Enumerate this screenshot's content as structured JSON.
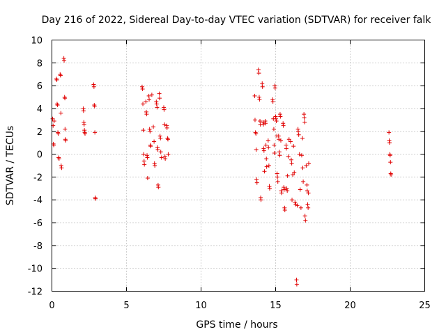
{
  "chart_data": {
    "type": "scatter",
    "title": "Day 216 of 2022, Sidereal Day-to-day VTEC variation (SDTVAR) for receiver falk",
    "xlabel": "GPS time / hours",
    "ylabel": "SDTVAR / TECUs",
    "xlim": [
      0,
      25
    ],
    "ylim": [
      -12,
      10
    ],
    "xticks": [
      0,
      5,
      10,
      15,
      20,
      25
    ],
    "xtick_labels": [
      "0",
      "5",
      "10",
      "15",
      "20",
      "25"
    ],
    "yticks": [
      -12,
      -10,
      -8,
      -6,
      -4,
      -2,
      0,
      2,
      4,
      6,
      8,
      10
    ],
    "ytick_labels": [
      "-12",
      "-10",
      "-8",
      "-6",
      "-4",
      "-2",
      "0",
      "2",
      "4",
      "6",
      "8",
      "10"
    ],
    "grid": true,
    "marker": "+",
    "series": [
      {
        "name": "SDTVAR",
        "color": "#e00000",
        "points": [
          [
            0.05,
            3.1
          ],
          [
            0.08,
            2.5
          ],
          [
            0.1,
            0.9
          ],
          [
            0.12,
            0.8
          ],
          [
            0.15,
            2.9
          ],
          [
            0.3,
            6.6
          ],
          [
            0.33,
            6.5
          ],
          [
            0.35,
            4.4
          ],
          [
            0.38,
            4.3
          ],
          [
            0.4,
            1.9
          ],
          [
            0.42,
            1.8
          ],
          [
            0.45,
            -0.3
          ],
          [
            0.48,
            -0.4
          ],
          [
            0.55,
            7.0
          ],
          [
            0.58,
            6.9
          ],
          [
            0.6,
            3.6
          ],
          [
            0.62,
            -1.0
          ],
          [
            0.65,
            -1.2
          ],
          [
            0.8,
            8.4
          ],
          [
            0.82,
            8.2
          ],
          [
            0.85,
            5.0
          ],
          [
            0.87,
            4.9
          ],
          [
            0.88,
            2.2
          ],
          [
            0.9,
            1.3
          ],
          [
            0.92,
            1.2
          ],
          [
            2.1,
            4.0
          ],
          [
            2.12,
            3.8
          ],
          [
            2.14,
            2.8
          ],
          [
            2.16,
            2.6
          ],
          [
            2.18,
            2.1
          ],
          [
            2.2,
            1.9
          ],
          [
            2.22,
            1.8
          ],
          [
            2.8,
            6.1
          ],
          [
            2.82,
            5.9
          ],
          [
            2.84,
            4.3
          ],
          [
            2.86,
            4.2
          ],
          [
            2.88,
            1.9
          ],
          [
            2.9,
            -3.8
          ],
          [
            2.92,
            -3.9
          ],
          [
            6.05,
            5.9
          ],
          [
            6.08,
            5.7
          ],
          [
            6.1,
            4.4
          ],
          [
            6.12,
            2.1
          ],
          [
            6.15,
            0.0
          ],
          [
            6.18,
            -0.6
          ],
          [
            6.2,
            -0.9
          ],
          [
            6.3,
            4.6
          ],
          [
            6.33,
            3.7
          ],
          [
            6.35,
            3.5
          ],
          [
            6.38,
            -0.1
          ],
          [
            6.4,
            -0.3
          ],
          [
            6.42,
            -2.1
          ],
          [
            6.5,
            5.1
          ],
          [
            6.52,
            4.8
          ],
          [
            6.55,
            2.2
          ],
          [
            6.58,
            2.0
          ],
          [
            6.6,
            0.8
          ],
          [
            6.62,
            0.7
          ],
          [
            6.7,
            5.2
          ],
          [
            6.8,
            2.4
          ],
          [
            6.85,
            1.1
          ],
          [
            6.88,
            -0.8
          ],
          [
            6.9,
            -1.0
          ],
          [
            7.0,
            4.6
          ],
          [
            7.02,
            4.4
          ],
          [
            7.05,
            4.1
          ],
          [
            7.08,
            0.6
          ],
          [
            7.1,
            0.4
          ],
          [
            7.12,
            -2.7
          ],
          [
            7.14,
            -2.9
          ],
          [
            7.2,
            5.3
          ],
          [
            7.22,
            4.9
          ],
          [
            7.25,
            1.6
          ],
          [
            7.28,
            1.4
          ],
          [
            7.3,
            0.2
          ],
          [
            7.35,
            -0.3
          ],
          [
            7.5,
            4.1
          ],
          [
            7.52,
            3.9
          ],
          [
            7.55,
            2.6
          ],
          [
            7.58,
            -0.2
          ],
          [
            7.6,
            -0.4
          ],
          [
            7.7,
            2.5
          ],
          [
            7.72,
            2.3
          ],
          [
            7.75,
            1.4
          ],
          [
            7.78,
            1.3
          ],
          [
            7.8,
            0.0
          ],
          [
            13.6,
            5.1
          ],
          [
            13.62,
            3.0
          ],
          [
            13.65,
            1.9
          ],
          [
            13.68,
            1.8
          ],
          [
            13.7,
            0.4
          ],
          [
            13.72,
            -2.2
          ],
          [
            13.75,
            -2.5
          ],
          [
            13.85,
            7.4
          ],
          [
            13.88,
            7.1
          ],
          [
            13.9,
            5.0
          ],
          [
            13.92,
            4.8
          ],
          [
            13.95,
            2.9
          ],
          [
            13.98,
            2.6
          ],
          [
            14.0,
            -3.8
          ],
          [
            14.02,
            -4.0
          ],
          [
            14.1,
            6.2
          ],
          [
            14.12,
            5.9
          ],
          [
            14.15,
            2.8
          ],
          [
            14.18,
            2.6
          ],
          [
            14.2,
            0.5
          ],
          [
            14.22,
            0.3
          ],
          [
            14.25,
            -1.5
          ],
          [
            14.3,
            2.9
          ],
          [
            14.32,
            2.7
          ],
          [
            14.35,
            0.8
          ],
          [
            14.38,
            -0.4
          ],
          [
            14.4,
            -1.1
          ],
          [
            14.5,
            1.2
          ],
          [
            14.52,
            0.6
          ],
          [
            14.55,
            -1.0
          ],
          [
            14.58,
            -2.8
          ],
          [
            14.6,
            -3.0
          ],
          [
            14.8,
            4.8
          ],
          [
            14.82,
            4.6
          ],
          [
            14.85,
            3.1
          ],
          [
            14.88,
            2.2
          ],
          [
            14.9,
            0.8
          ],
          [
            14.92,
            0.1
          ],
          [
            14.95,
            6.0
          ],
          [
            14.97,
            5.8
          ],
          [
            15.0,
            3.3
          ],
          [
            15.02,
            3.1
          ],
          [
            15.05,
            2.9
          ],
          [
            15.08,
            1.6
          ],
          [
            15.1,
            -1.7
          ],
          [
            15.12,
            -2.0
          ],
          [
            15.15,
            -2.4
          ],
          [
            15.2,
            1.6
          ],
          [
            15.22,
            1.3
          ],
          [
            15.25,
            0.2
          ],
          [
            15.28,
            -0.1
          ],
          [
            15.3,
            3.5
          ],
          [
            15.32,
            3.3
          ],
          [
            15.35,
            1.2
          ],
          [
            15.38,
            -3.2
          ],
          [
            15.4,
            -3.4
          ],
          [
            15.5,
            2.7
          ],
          [
            15.52,
            2.5
          ],
          [
            15.55,
            -2.9
          ],
          [
            15.58,
            -3.1
          ],
          [
            15.6,
            -4.7
          ],
          [
            15.62,
            -4.9
          ],
          [
            15.7,
            0.8
          ],
          [
            15.72,
            0.5
          ],
          [
            15.75,
            -3.0
          ],
          [
            15.78,
            -3.2
          ],
          [
            15.8,
            -1.9
          ],
          [
            15.85,
            -0.2
          ],
          [
            15.9,
            1.3
          ],
          [
            16.0,
            1.1
          ],
          [
            16.05,
            -0.5
          ],
          [
            16.08,
            -0.8
          ],
          [
            16.1,
            -4.0
          ],
          [
            16.15,
            -1.8
          ],
          [
            16.2,
            0.7
          ],
          [
            16.25,
            -1.6
          ],
          [
            16.3,
            -4.2
          ],
          [
            16.35,
            -4.4
          ],
          [
            16.4,
            -11.0
          ],
          [
            16.42,
            -11.4
          ],
          [
            16.45,
            -4.5
          ],
          [
            16.5,
            2.2
          ],
          [
            16.52,
            2.0
          ],
          [
            16.55,
            1.7
          ],
          [
            16.6,
            0.0
          ],
          [
            16.65,
            -3.1
          ],
          [
            16.7,
            -4.7
          ],
          [
            16.75,
            -0.1
          ],
          [
            16.8,
            1.4
          ],
          [
            16.82,
            -1.2
          ],
          [
            16.85,
            -2.4
          ],
          [
            16.9,
            3.5
          ],
          [
            16.92,
            3.2
          ],
          [
            16.95,
            2.8
          ],
          [
            16.97,
            -5.4
          ],
          [
            17.0,
            -5.8
          ],
          [
            17.05,
            -1.0
          ],
          [
            17.1,
            -2.7
          ],
          [
            17.12,
            -3.2
          ],
          [
            17.15,
            -4.4
          ],
          [
            17.18,
            -4.7
          ],
          [
            17.2,
            -3.4
          ],
          [
            17.22,
            -0.8
          ],
          [
            22.6,
            1.9
          ],
          [
            22.62,
            1.2
          ],
          [
            22.64,
            1.0
          ],
          [
            22.66,
            0.0
          ],
          [
            22.68,
            -0.1
          ],
          [
            22.7,
            -0.7
          ],
          [
            22.72,
            -1.7
          ],
          [
            22.74,
            -1.8
          ]
        ]
      }
    ]
  }
}
